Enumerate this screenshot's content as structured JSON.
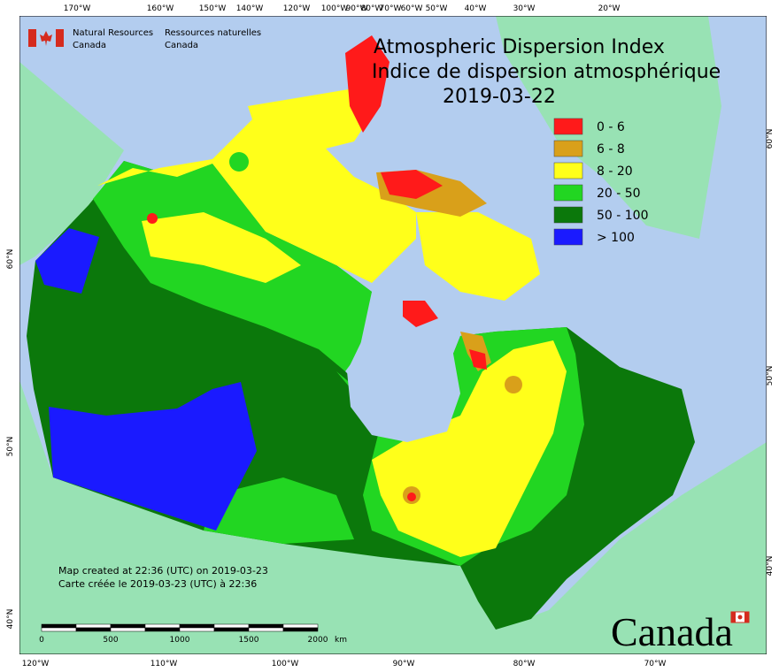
{
  "header": {
    "agency_en_1": "Natural Resources",
    "agency_en_2": "Canada",
    "agency_fr_1": "Ressources naturelles",
    "agency_fr_2": "Canada"
  },
  "title": {
    "line1": "Atmospheric Dispersion Index",
    "line2": "Indice de dispersion atmosphérique",
    "date": "2019-03-22"
  },
  "legend": [
    {
      "label": "0 - 6",
      "color": "#ff1a1a"
    },
    {
      "label": "6 - 8",
      "color": "#d9a01a"
    },
    {
      "label": "8 - 20",
      "color": "#ffff1a"
    },
    {
      "label": "20 - 50",
      "color": "#22d622"
    },
    {
      "label": "50 - 100",
      "color": "#0b780b"
    },
    {
      "label": "> 100",
      "color": "#1a1aff"
    }
  ],
  "graticule": {
    "top": [
      "170°W",
      "160°W",
      "150°W",
      "140°W",
      "120°W",
      "100°W",
      "90°W",
      "80°W",
      "70°W",
      "60°W",
      "50°W",
      "40°W",
      "30°W",
      "20°W"
    ],
    "bottom": [
      "120°W",
      "110°W",
      "100°W",
      "90°W",
      "80°W",
      "70°W"
    ],
    "left": [
      "60°N",
      "50°N",
      "40°N"
    ],
    "right": [
      "60°N",
      "50°N",
      "40°N"
    ]
  },
  "notes": [
    "Map created at 22:36 (UTC) on 2019-03-23",
    "Carte créée le 2019-03-23 (UTC) à 22:36"
  ],
  "scale_bar": {
    "ticks": [
      "0",
      "500",
      "1000",
      "1500",
      "2000"
    ],
    "unit": "km"
  },
  "wordmark": "Canada"
}
